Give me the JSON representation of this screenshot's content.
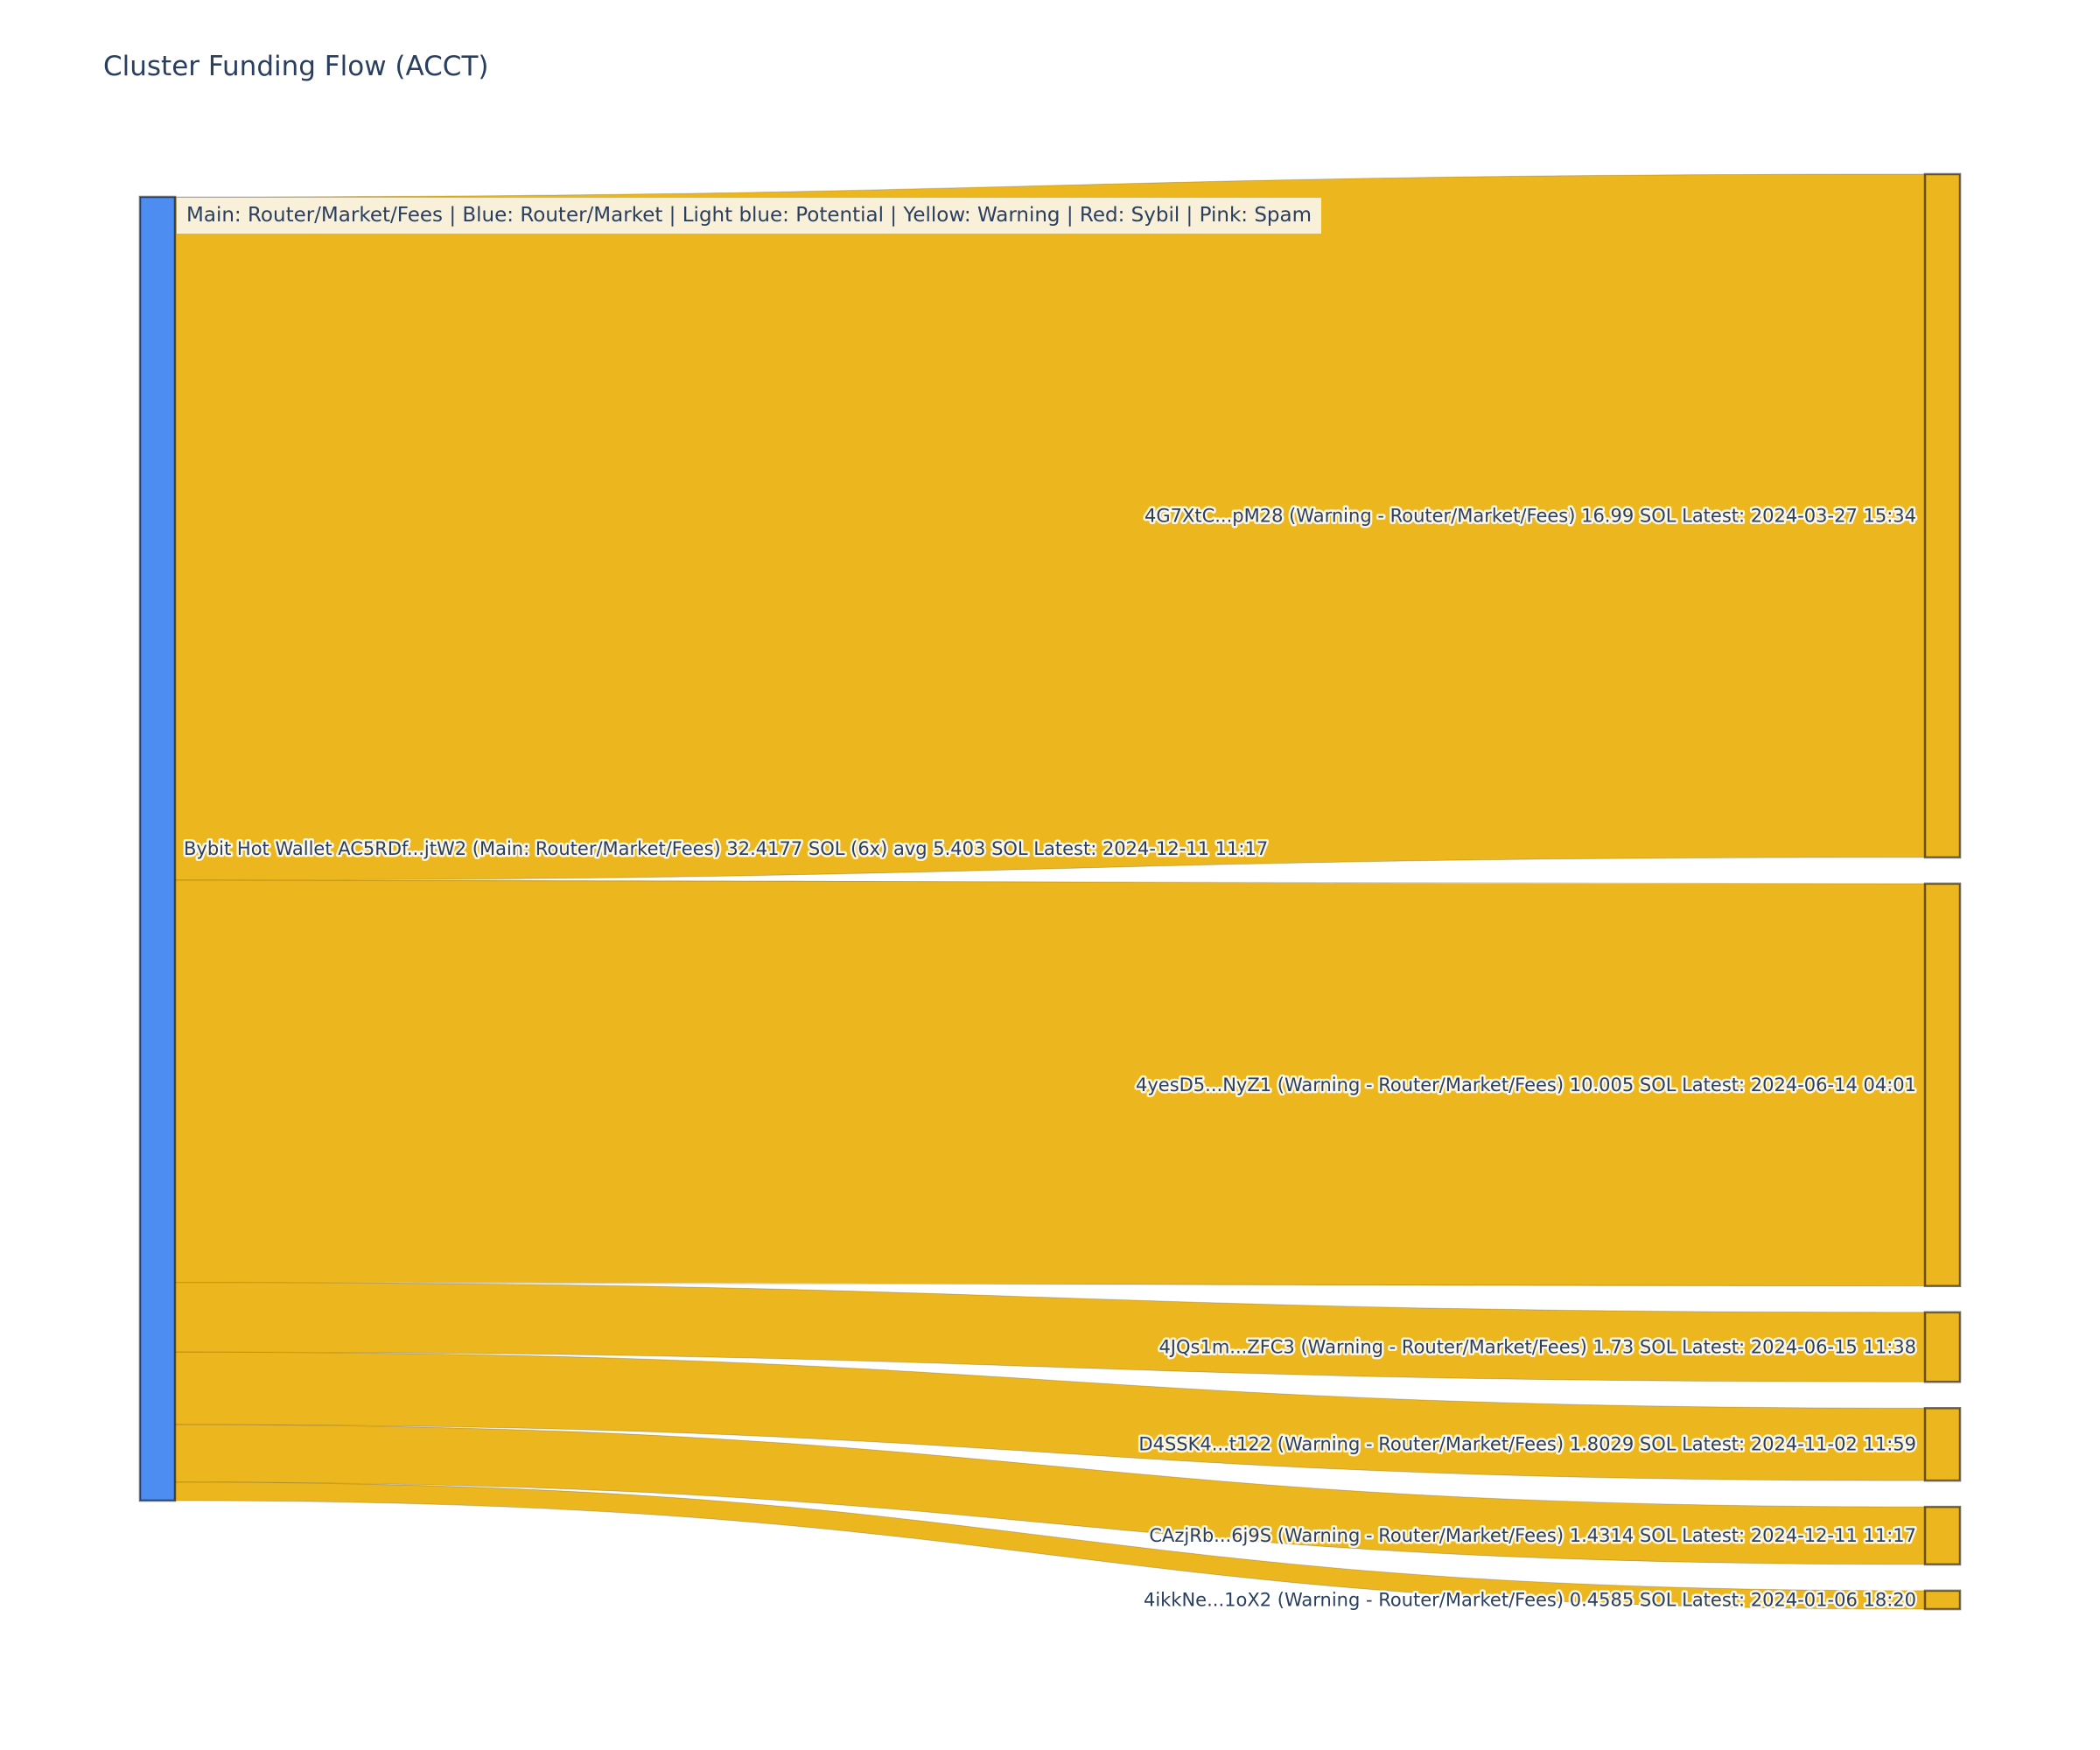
{
  "title": "Cluster Funding Flow (ACCT)",
  "legend_text": "Main: Router/Market/Fees  |  Blue: Router/Market | Light blue: Potential | Yellow: Warning | Red: Sybil | Pink: Spam",
  "colors": {
    "source_node": "#4d8cf1",
    "target_node": "#ecb71e",
    "flow": "#ecb71e",
    "node_border": "rgba(0,0,0,0.55)",
    "flow_edge": "rgba(0,0,0,0.18)",
    "label_text": "#2a3f5f",
    "label_halo": "#ffffff",
    "legend_bg": "#f9f0da",
    "title_color": "#2a3f5f",
    "background": "#ffffff"
  },
  "chart_data": {
    "type": "sankey",
    "title": "Cluster Funding Flow (ACCT)",
    "unit": "SOL",
    "legend": "Main: Router/Market/Fees  |  Blue: Router/Market | Light blue: Potential | Yellow: Warning | Red: Sybil | Pink: Spam",
    "source_node": {
      "label": "Bybit Hot Wallet AC5RDf...jtW2 (Main: Router/Market/Fees) 32.4177 SOL (6x) avg 5.403 SOL Latest: 2024-12-11 11:17",
      "name": "Bybit Hot Wallet AC5RDf...jtW2",
      "category": "Main: Router/Market/Fees",
      "total_sol": 32.4177,
      "transfer_count": "6x",
      "avg_sol": 5.403,
      "latest": "2024-12-11 11:17"
    },
    "links": [
      {
        "target_label": "4G7XtC...pM28 (Warning - Router/Market/Fees) 16.99 SOL Latest: 2024-03-27 15:34",
        "target_name": "4G7XtC...pM28",
        "category": "Warning - Router/Market/Fees",
        "value_sol": 16.99,
        "latest": "2024-03-27 15:34"
      },
      {
        "target_label": "4yesD5...NyZ1 (Warning - Router/Market/Fees) 10.005 SOL Latest: 2024-06-14 04:01",
        "target_name": "4yesD5...NyZ1",
        "category": "Warning - Router/Market/Fees",
        "value_sol": 10.005,
        "latest": "2024-06-14 04:01"
      },
      {
        "target_label": "4JQs1m...ZFC3 (Warning - Router/Market/Fees) 1.73 SOL Latest: 2024-06-15 11:38",
        "target_name": "4JQs1m...ZFC3",
        "category": "Warning - Router/Market/Fees",
        "value_sol": 1.73,
        "latest": "2024-06-15 11:38"
      },
      {
        "target_label": "D4SSK4...t122 (Warning - Router/Market/Fees) 1.8029 SOL Latest: 2024-11-02 11:59",
        "target_name": "D4SSK4...t122",
        "category": "Warning - Router/Market/Fees",
        "value_sol": 1.8029,
        "latest": "2024-11-02 11:59"
      },
      {
        "target_label": "CAzjRb...6j9S (Warning - Router/Market/Fees) 1.4314 SOL Latest: 2024-12-11 11:17",
        "target_name": "CAzjRb...6j9S",
        "category": "Warning - Router/Market/Fees",
        "value_sol": 1.4314,
        "latest": "2024-12-11 11:17"
      },
      {
        "target_label": "4ikkNe...1oX2 (Warning - Router/Market/Fees) 0.4585 SOL Latest: 2024-01-06 18:20",
        "target_name": "4ikkNe...1oX2",
        "category": "Warning - Router/Market/Fees",
        "value_sol": 0.4585,
        "latest": "2024-01-06 18:20"
      }
    ]
  }
}
